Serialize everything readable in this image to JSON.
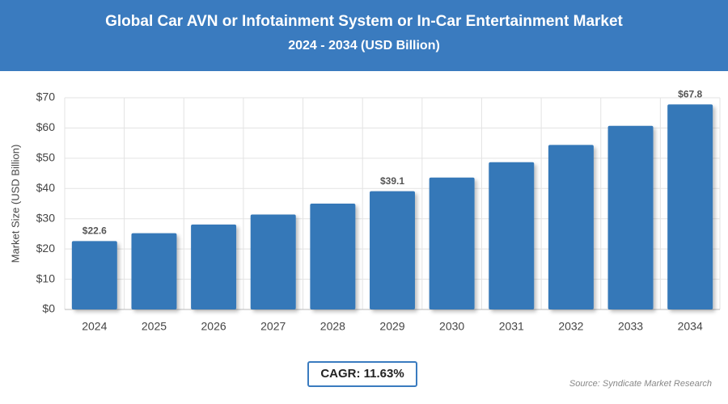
{
  "chart_data": {
    "type": "bar",
    "title": "Global Car AVN or Infotainment System or In-Car Entertainment Market",
    "subtitle": "2024 - 2034 (USD Billion)",
    "y_label": "Market Size (USD Billion)",
    "categories": [
      "2024",
      "2025",
      "2026",
      "2027",
      "2028",
      "2029",
      "2030",
      "2031",
      "2032",
      "2033",
      "2034"
    ],
    "values": [
      22.6,
      25.2,
      28.1,
      31.4,
      35.0,
      39.1,
      43.6,
      48.7,
      54.4,
      60.7,
      67.8
    ],
    "value_labels": [
      "$22.6",
      null,
      null,
      null,
      null,
      "$39.1",
      null,
      null,
      null,
      null,
      "$67.8"
    ],
    "color": "#3478b8",
    "ylim": [
      0,
      70
    ],
    "yticks": [
      {
        "value": 0,
        "label": "$0"
      },
      {
        "value": 10,
        "label": "$10"
      },
      {
        "value": 20,
        "label": "$20"
      },
      {
        "value": 30,
        "label": "$30"
      },
      {
        "value": 40,
        "label": "$40"
      },
      {
        "value": 50,
        "label": "$50"
      },
      {
        "value": 60,
        "label": "$60"
      },
      {
        "value": 70,
        "label": "$70"
      }
    ],
    "grid": true
  },
  "footer": {
    "cagr": "CAGR: 11.63%",
    "source": "Source: Syndicate Market Research"
  }
}
